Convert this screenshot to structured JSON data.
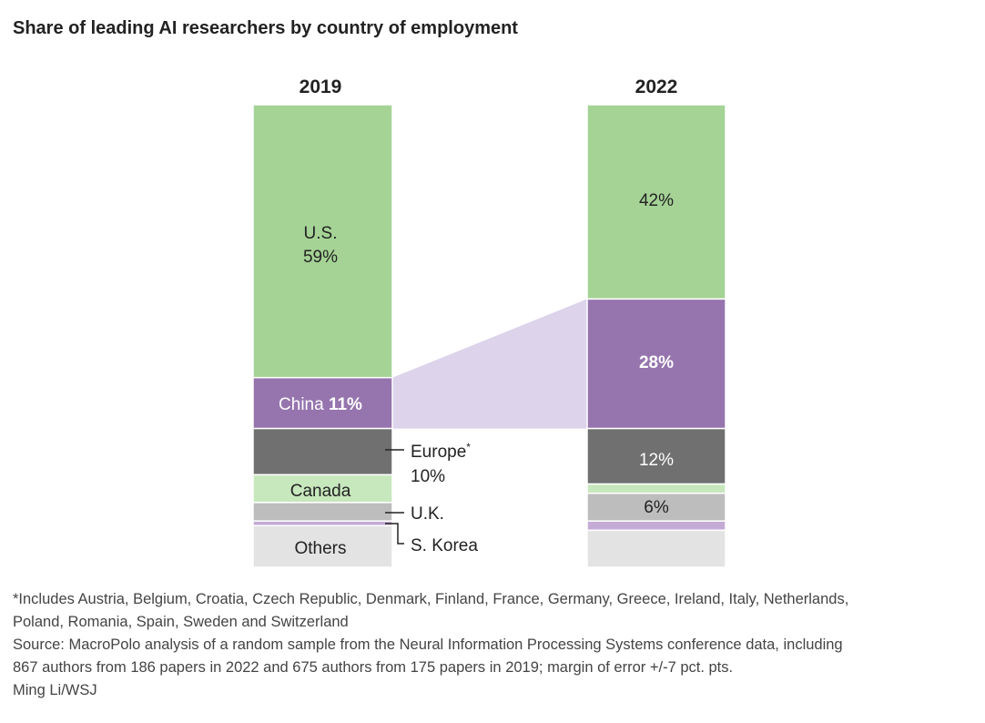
{
  "chart_data": {
    "type": "bar",
    "title": "Share of leading AI researchers by country of employment",
    "categories": [
      "2019",
      "2022"
    ],
    "series": [
      {
        "name": "U.S.",
        "color": "#a5d396",
        "values": [
          59,
          42
        ]
      },
      {
        "name": "China",
        "color": "#9675ae",
        "values": [
          11,
          28
        ]
      },
      {
        "name": "Europe",
        "color": "#707070",
        "values": [
          10,
          12
        ]
      },
      {
        "name": "Canada",
        "color": "#c7e7bd",
        "values": [
          6,
          2
        ]
      },
      {
        "name": "U.K.",
        "color": "#bdbdbd",
        "values": [
          4,
          6
        ]
      },
      {
        "name": "S. Korea",
        "color": "#c4abd6",
        "values": [
          1,
          2
        ]
      },
      {
        "name": "Others",
        "color": "#e3e3e3",
        "values": [
          9,
          8
        ]
      }
    ],
    "labels": {
      "us_2019_name": "U.S.",
      "us_2019_value": "59%",
      "us_2022_value": "42%",
      "china_2019_name": "China",
      "china_2019_value": "11%",
      "china_2022_value": "28%",
      "europe_name": "Europe",
      "europe_mark": "*",
      "europe_2019_value": "10%",
      "europe_2022_value": "12%",
      "canada_name": "Canada",
      "uk_name": "U.K.",
      "uk_2022_value": "6%",
      "skorea_name": "S. Korea",
      "others_name": "Others"
    },
    "highlight_color": "#ddd3eb",
    "stacking": "stacked-100"
  },
  "footnotes": {
    "note_line1": "*Includes Austria, Belgium, Croatia, Czech Republic, Denmark, Finland, France, Germany, Greece, Ireland, Italy, Netherlands,",
    "note_line2": "Poland, Romania, Spain, Sweden and Switzerland",
    "source_line1": "Source: MacroPolo analysis of a random sample from the Neural Information Processing Systems conference data, including",
    "source_line2": "867 authors from 186 papers in 2022 and 675 authors from 175 papers in 2019; margin of error +/-7 pct. pts.",
    "credit": "Ming Li/WSJ"
  }
}
